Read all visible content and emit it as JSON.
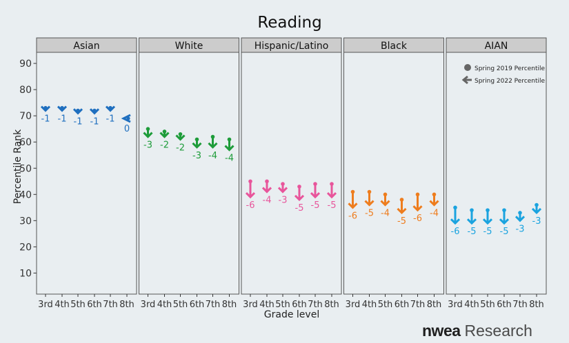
{
  "chart_data": {
    "type": "scatter",
    "title": "Reading",
    "xlabel": "Grade level",
    "ylabel": "Percentile Rank",
    "ylim": [
      0,
      95
    ],
    "yticks": [
      10,
      20,
      30,
      40,
      50,
      60,
      70,
      80,
      90
    ],
    "categories": [
      "3rd",
      "4th",
      "5th",
      "6th",
      "7th",
      "8th"
    ],
    "legend": {
      "position": "top-right",
      "items": [
        "Spring 2019 Percentile",
        "Spring 2022 Percentile"
      ]
    },
    "grid": false,
    "panels": [
      {
        "name": "Asian",
        "color": "#1f6fbf",
        "spring2019": [
          73,
          73,
          72,
          72,
          73,
          69
        ],
        "spring2022": [
          72,
          72,
          71,
          71,
          72,
          69
        ],
        "change": [
          "-1",
          "-1",
          "-1",
          "-1",
          "-1",
          "0"
        ]
      },
      {
        "name": "White",
        "color": "#1e9c3a",
        "spring2019": [
          65,
          64,
          63,
          61,
          62,
          61
        ],
        "spring2022": [
          62,
          62,
          61,
          58,
          58,
          57
        ],
        "change": [
          "-3",
          "-2",
          "-2",
          "-3",
          "-4",
          "-4"
        ]
      },
      {
        "name": "Hispanic/Latino",
        "color": "#e8559b",
        "spring2019": [
          45,
          45,
          44,
          43,
          44,
          44
        ],
        "spring2022": [
          39,
          41,
          41,
          38,
          39,
          39
        ],
        "change": [
          "-6",
          "-4",
          "-3",
          "-5",
          "-5",
          "-5"
        ]
      },
      {
        "name": "Black",
        "color": "#ee7d1e",
        "spring2019": [
          41,
          41,
          40,
          38,
          40,
          40
        ],
        "spring2022": [
          35,
          36,
          36,
          33,
          34,
          36
        ],
        "change": [
          "-6",
          "-5",
          "-4",
          "-5",
          "-6",
          "-4"
        ]
      },
      {
        "name": "AIAN",
        "color": "#1aa3df",
        "spring2019": [
          35,
          34,
          34,
          34,
          33,
          36
        ],
        "spring2022": [
          29,
          29,
          29,
          29,
          30,
          33
        ],
        "change": [
          "-6",
          "-5",
          "-5",
          "-5",
          "-3",
          "-3"
        ]
      }
    ]
  },
  "brand": {
    "part1": "nwea",
    "part2": "Research"
  },
  "colors": {
    "background": "#e9eef1",
    "strip": "#cccccc",
    "axis": "#333333",
    "legend_icon": "#666666"
  }
}
